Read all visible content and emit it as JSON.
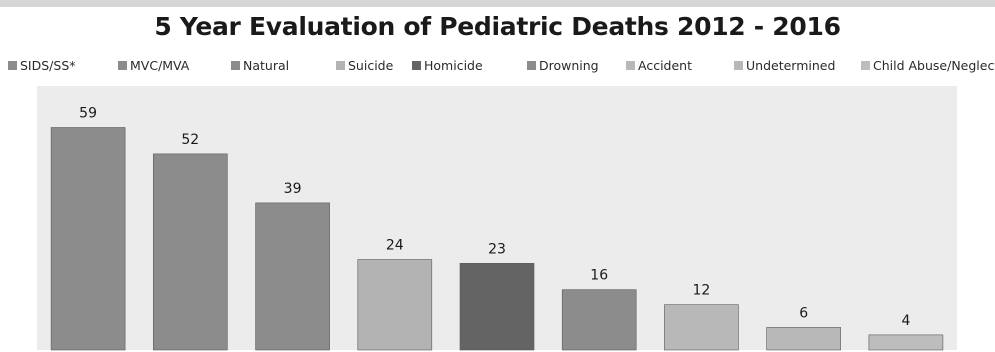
{
  "chart_data": {
    "type": "bar",
    "title": "5 Year Evaluation of Pediatric Deaths 2012 - 2016",
    "xlabel": "",
    "ylabel": "",
    "ylim": [
      0,
      70
    ],
    "grid": false,
    "legend_position": "top",
    "categories": [
      "SIDS/SS*",
      "MVC/MVA",
      "Natural",
      "Suicide",
      "Homicide",
      "Drowning",
      "Accident",
      "Undetermined",
      "Child Abuse/Neglect"
    ],
    "values": [
      59,
      52,
      39,
      24,
      23,
      16,
      12,
      6,
      4
    ],
    "colors": [
      "#8c8c8c",
      "#8c8c8c",
      "#8c8c8c",
      "#b3b3b3",
      "#646464",
      "#8c8c8c",
      "#b8b8b8",
      "#b8b8b8",
      "#bdbdbd"
    ],
    "plot_background": "#ececec"
  }
}
